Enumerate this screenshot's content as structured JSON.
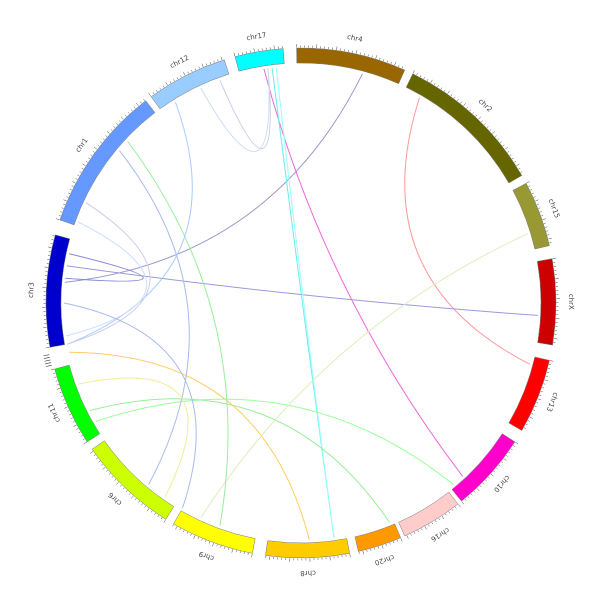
{
  "chromosomes": [
    {
      "label": "chr17",
      "color": "#00ffff"
    },
    {
      "label": "chr4",
      "color": "#996600"
    },
    {
      "label": "chr2",
      "color": "#666600"
    },
    {
      "label": "chr15",
      "color": "#999933"
    },
    {
      "label": "chrX",
      "color": "#cc0000"
    },
    {
      "label": "chr13",
      "color": "#ff0000"
    },
    {
      "label": "chr10",
      "color": "#ff00cc"
    },
    {
      "label": "chr16",
      "color": "#ffcccc"
    },
    {
      "label": "chr20",
      "color": "#ff9900"
    },
    {
      "label": "chr8",
      "color": "#ffcc00"
    },
    {
      "label": "chr9",
      "color": "#ffff00"
    },
    {
      "label": "chr6",
      "color": "#ccff00"
    },
    {
      "label": "chr11",
      "color": "#00ff00"
    },
    {
      "label": "chr3",
      "color": "#0000cc"
    },
    {
      "label": "chr1",
      "color": "#6699ff"
    },
    {
      "label": "chr12",
      "color": "#99ccff"
    }
  ]
}
